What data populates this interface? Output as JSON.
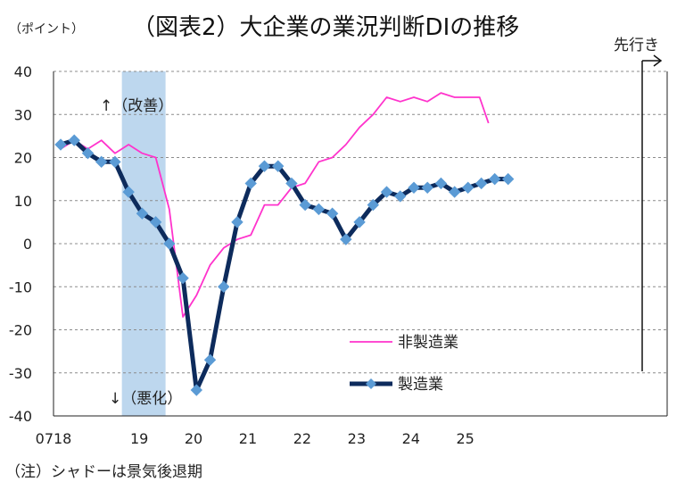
{
  "chart_data": {
    "type": "line",
    "title": "（図表2）大企業の業況判断DIの推移",
    "ylabel": "（ポイント）",
    "ylim": [
      -40,
      40
    ],
    "yticks": [
      40,
      30,
      20,
      10,
      0,
      -10,
      -20,
      -30,
      -40
    ],
    "xtick_labels": [
      "0718",
      "19",
      "20",
      "21",
      "22",
      "23",
      "24",
      "25"
    ],
    "quarters": [
      "2018Q3",
      "2018Q4",
      "2019Q1",
      "2019Q2",
      "2019Q3",
      "2019Q4",
      "2020Q1",
      "2020Q2",
      "2020Q3",
      "2020Q4",
      "2021Q1",
      "2021Q2",
      "2021Q3",
      "2021Q4",
      "2022Q1",
      "2022Q2",
      "2022Q3",
      "2022Q4",
      "2023Q1",
      "2023Q2",
      "2023Q3",
      "2023Q4",
      "2024Q1",
      "2024Q2",
      "2024Q3",
      "2024Q4",
      "2025Q1",
      "2025Q2",
      "2025Q3",
      "2025Q4"
    ],
    "series": [
      {
        "name": "非製造業",
        "color": "#ff33cc",
        "markers": false,
        "values": [
          22,
          24,
          22,
          24,
          21,
          23,
          21,
          20,
          8,
          -17,
          -12,
          -5,
          -1,
          1,
          2,
          9,
          9,
          13,
          14,
          19,
          20,
          23,
          27,
          30,
          34,
          33,
          34,
          33,
          35,
          34
        ]
      },
      {
        "name": "製造業",
        "color": "#0d2b5c",
        "markers": true,
        "marker_color": "#5b9bd5",
        "values": [
          23,
          24,
          21,
          19,
          19,
          12,
          7,
          5,
          0,
          -8,
          -34,
          -27,
          -10,
          5,
          14,
          18,
          18,
          14,
          9,
          8,
          7,
          1,
          5,
          9,
          12,
          11,
          13,
          13,
          14,
          12
        ]
      }
    ],
    "forecast": {
      "label": "先行き",
      "values": {
        "非製造業": [
          34,
          34,
          28
        ],
        "製造業": [
          13,
          14,
          15,
          15
        ]
      }
    },
    "shaded_period": {
      "note": "（注）シャドーは景気後退期",
      "color": "#bdd7ee",
      "from": "2019Q4",
      "to": "2020Q2"
    },
    "annotations": {
      "up": "↑（改善）",
      "down": "↓（悪化）"
    },
    "grid": "horizontal-dashed",
    "legend_placement": "bottom-right"
  }
}
